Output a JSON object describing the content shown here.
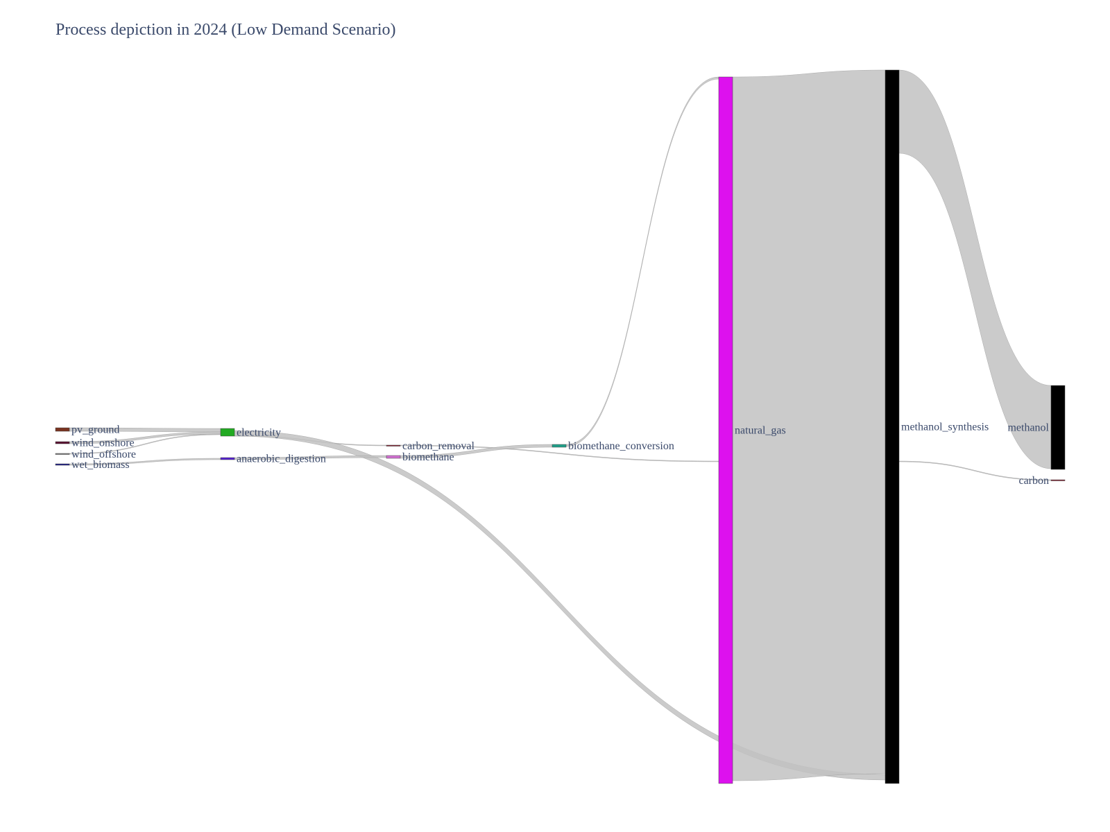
{
  "title": "Process depiction in 2024 (Low Demand Scenario)",
  "colors": {
    "link": "#c2c2c2",
    "link_opacity": 0.85,
    "label": "#3b4a6b"
  },
  "chart_data": {
    "type": "sankey",
    "title": "Process depiction in 2024 (Low Demand Scenario)",
    "nodes": [
      {
        "id": "pv_ground",
        "label": "pv_ground",
        "color": "#7a3320",
        "column": 0
      },
      {
        "id": "wind_onshore",
        "label": "wind_onshore",
        "color": "#5a1030",
        "column": 0
      },
      {
        "id": "wind_offshore",
        "label": "wind_offshore",
        "color": "#7a7a7a",
        "column": 0
      },
      {
        "id": "wet_biomass",
        "label": "wet_biomass",
        "color": "#20208a",
        "column": 0
      },
      {
        "id": "electricity",
        "label": "electricity",
        "color": "#22aa22",
        "column": 1
      },
      {
        "id": "anaerobic_digestion",
        "label": "anaerobic_digestion",
        "color": "#5520d0",
        "column": 1
      },
      {
        "id": "carbon_removal",
        "label": "carbon_removal",
        "color": "#8a2030",
        "column": 2
      },
      {
        "id": "biomethane",
        "label": "biomethane",
        "color": "#d070d0",
        "column": 2
      },
      {
        "id": "biomethane_conversion",
        "label": "biomethane_conversion",
        "color": "#20a08a",
        "column": 3
      },
      {
        "id": "natural_gas",
        "label": "natural_gas",
        "color": "#dd11ee",
        "column": 4
      },
      {
        "id": "methanol_synthesis",
        "label": "methanol_synthesis",
        "color": "#000000",
        "column": 5
      },
      {
        "id": "methanol",
        "label": "methanol",
        "color": "#000000",
        "column": 6
      },
      {
        "id": "carbon",
        "label": "carbon",
        "color": "#8a2030",
        "column": 6
      }
    ],
    "links": [
      {
        "source": "pv_ground",
        "target": "electricity",
        "value": 5
      },
      {
        "source": "wind_onshore",
        "target": "electricity",
        "value": 3
      },
      {
        "source": "wind_offshore",
        "target": "electricity",
        "value": 1
      },
      {
        "source": "wet_biomass",
        "target": "anaerobic_digestion",
        "value": 2
      },
      {
        "source": "electricity",
        "target": "carbon_removal",
        "value": 1
      },
      {
        "source": "electricity",
        "target": "methanol_synthesis",
        "value": 8
      },
      {
        "source": "anaerobic_digestion",
        "target": "biomethane",
        "value": 2
      },
      {
        "source": "carbon_removal",
        "target": "natural_gas",
        "value": 1
      },
      {
        "source": "biomethane",
        "target": "biomethane_conversion",
        "value": 2
      },
      {
        "source": "biomethane_conversion",
        "target": "natural_gas",
        "value": 2
      },
      {
        "source": "natural_gas",
        "target": "methanol_synthesis",
        "value": 500
      },
      {
        "source": "methanol_synthesis",
        "target": "methanol",
        "value": 59
      },
      {
        "source": "methanol_synthesis",
        "target": "carbon",
        "value": 1
      }
    ]
  }
}
